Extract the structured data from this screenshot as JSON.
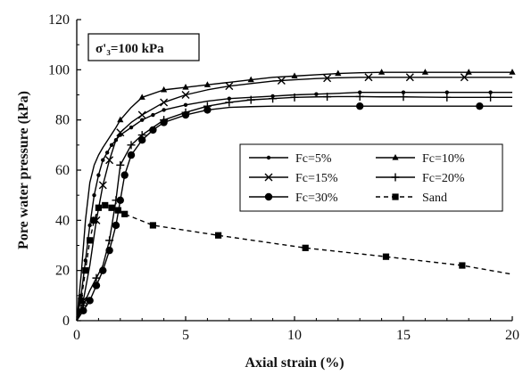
{
  "chart_data": {
    "type": "line",
    "annotation": "σ'₃=100 kPa",
    "xlabel": "Axial strain (%)",
    "ylabel": "Pore water pressure (kPa)",
    "xlim": [
      0,
      20
    ],
    "ylim": [
      0,
      120
    ],
    "xticks": [
      0,
      5,
      10,
      15,
      20
    ],
    "yticks": [
      0,
      20,
      40,
      60,
      80,
      100,
      120
    ],
    "grid": false,
    "legend_position": "center-right",
    "series": [
      {
        "name": "Fc=5%",
        "marker": "small-dot",
        "dash": "solid",
        "x": [
          0,
          0.2,
          0.4,
          0.6,
          0.8,
          1.0,
          1.2,
          1.4,
          1.6,
          1.8,
          2.0,
          2.5,
          3.0,
          3.5,
          4.0,
          5.0,
          6.0,
          7.0,
          8.0,
          9.0,
          10.0,
          11.0,
          12.0,
          13.0,
          14.0,
          15.0,
          16.0,
          17.0,
          18.0,
          19.0,
          20.0
        ],
        "y": [
          0,
          10,
          24,
          38,
          50,
          58,
          64,
          67,
          70,
          72,
          74,
          77,
          80,
          82,
          84,
          86,
          87.5,
          88.5,
          89,
          89.5,
          90,
          90.3,
          90.6,
          91,
          91,
          91,
          91,
          91,
          91,
          91,
          91
        ],
        "marker_x": [
          0.2,
          0.4,
          0.6,
          0.8,
          1.0,
          1.2,
          1.4,
          1.6,
          1.8,
          2.0,
          2.5,
          3.0,
          3.5,
          4.0,
          5.0,
          7.0,
          9.0,
          11.0,
          13.0,
          15.0,
          17.0,
          19.0
        ]
      },
      {
        "name": "Fc=10%",
        "marker": "triangle",
        "dash": "solid",
        "x": [
          0,
          0.2,
          0.4,
          0.6,
          0.8,
          1.0,
          1.2,
          1.5,
          1.8,
          2.0,
          2.5,
          3.0,
          4.0,
          5.0,
          6.0,
          7.0,
          8.0,
          9.0,
          10.0,
          11.0,
          12.0,
          13.0,
          14.0,
          15.0,
          16.0,
          17.0,
          18.0,
          19.0,
          20.0
        ],
        "y": [
          0,
          18,
          40,
          55,
          62,
          66,
          69,
          73,
          77,
          80,
          85,
          89,
          92,
          93,
          94,
          95,
          96,
          97,
          97.5,
          98,
          98.5,
          98.8,
          99,
          99,
          99,
          99,
          99,
          99,
          99
        ],
        "marker_x": [
          2.0,
          3.0,
          4.0,
          5.0,
          6.0,
          8.0,
          10.0,
          12.0,
          14.0,
          16.0,
          18.0,
          20.0
        ]
      },
      {
        "name": "Fc=15%",
        "marker": "cross",
        "dash": "solid",
        "x": [
          0,
          0.3,
          0.6,
          0.9,
          1.2,
          1.5,
          1.8,
          2.0,
          2.5,
          3.0,
          4.0,
          5.0,
          6.0,
          7.0,
          8.0,
          9.0,
          10.0,
          11.0,
          12.0,
          13.0,
          14.0,
          15.0,
          16.0,
          17.0,
          18.0,
          19.0,
          20.0
        ],
        "y": [
          0,
          8,
          22,
          40,
          54,
          64,
          72,
          75,
          79,
          82,
          87,
          90,
          92,
          93.5,
          94.5,
          95.5,
          96,
          96.5,
          96.8,
          97,
          97,
          97,
          97,
          97,
          97,
          97,
          97
        ],
        "marker_x": [
          0.3,
          0.9,
          1.2,
          1.5,
          2.0,
          3.0,
          4.0,
          5.0,
          7.0,
          9.4,
          11.5,
          13.4,
          15.3,
          17.8
        ]
      },
      {
        "name": "Fc=20%",
        "marker": "plus",
        "dash": "solid",
        "x": [
          0,
          0.3,
          0.6,
          0.9,
          1.2,
          1.5,
          1.8,
          2.0,
          2.5,
          3.0,
          3.5,
          4.0,
          5.0,
          6.0,
          7.0,
          8.0,
          9.0,
          10.0,
          11.0,
          12.0,
          13.0,
          14.0,
          15.0,
          16.0,
          17.0,
          18.0,
          19.0,
          20.0
        ],
        "y": [
          0,
          6,
          12,
          17,
          22,
          32,
          48,
          62,
          70,
          74,
          77,
          80,
          83,
          85.5,
          87,
          88,
          88.5,
          89,
          89.2,
          89.3,
          89.3,
          89.2,
          89.2,
          89.1,
          89,
          89,
          89,
          89
        ],
        "marker_x": [
          0.3,
          0.9,
          1.5,
          1.8,
          2.0,
          2.5,
          3.0,
          4.0,
          5.0,
          6.0,
          7.0,
          8.0,
          9.0,
          10.0,
          11.5,
          13.0,
          15.0,
          17.0,
          19.0
        ]
      },
      {
        "name": "Fc=30%",
        "marker": "big-dot",
        "dash": "solid",
        "x": [
          0,
          0.3,
          0.6,
          0.9,
          1.2,
          1.5,
          1.8,
          2.0,
          2.2,
          2.5,
          3.0,
          3.5,
          4.0,
          5.0,
          6.0,
          7.0,
          8.0,
          9.0,
          10.0,
          11.0,
          12.0,
          13.0,
          14.0,
          15.0,
          16.0,
          17.0,
          18.0,
          19.0,
          20.0
        ],
        "y": [
          0,
          4,
          8,
          14,
          20,
          28,
          38,
          48,
          58,
          66,
          72,
          76,
          79,
          82,
          84,
          85,
          85.3,
          85.5,
          85.5,
          85.5,
          85.5,
          85.5,
          85.5,
          85.5,
          85.5,
          85.5,
          85.5,
          85.5,
          85.5
        ],
        "marker_x": [
          0.3,
          0.6,
          0.9,
          1.2,
          1.5,
          1.8,
          2.0,
          2.2,
          2.5,
          3.0,
          3.5,
          4.0,
          5.0,
          6.0,
          13.0,
          18.5
        ]
      },
      {
        "name": "Sand",
        "marker": "square",
        "dash": "dashed",
        "x": [
          0,
          0.2,
          0.4,
          0.6,
          0.8,
          1.0,
          1.3,
          1.6,
          1.9,
          2.2,
          3.5,
          6.5,
          10.5,
          14.2,
          17.7,
          20.0
        ],
        "y": [
          0,
          8,
          20,
          32,
          40,
          45,
          46,
          45,
          44,
          42.5,
          38,
          34,
          29,
          25.5,
          22,
          18.5
        ],
        "marker_x": [
          0.2,
          0.4,
          0.6,
          0.8,
          1.0,
          1.3,
          1.6,
          1.9,
          2.2,
          3.5,
          6.5,
          10.5,
          14.2,
          17.7
        ]
      }
    ]
  }
}
